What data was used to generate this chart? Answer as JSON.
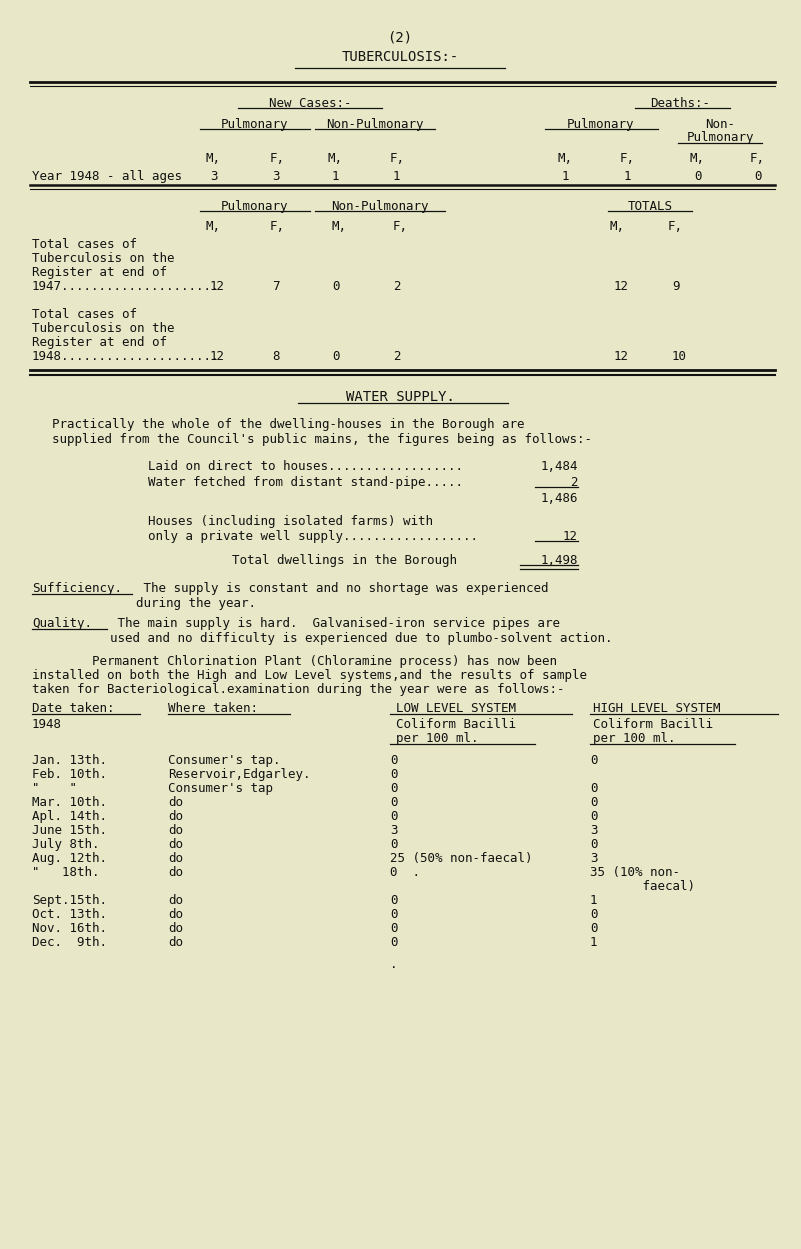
{
  "bg_color": "#e8e8c8",
  "text_color": "#111111",
  "page_title1": "(2)",
  "page_title2": "TUBERCULOSIS:-",
  "water_title": "WATER SUPPLY.",
  "water_para1": "Practically the whole of the dwelling-houses in the Borough are",
  "water_para2": "supplied from the Council's public mains, the figures being as follows:-",
  "water_item1_label": "Laid on direct to houses..................",
  "water_item1_val": "1,484",
  "water_item2_label": "Water fetched from distant stand-pipe.....",
  "water_item2_val": "2",
  "water_subtotal": "1,486",
  "water_item3_label1": "Houses (including isolated farms) with",
  "water_item3_label2": "only a private well supply..................",
  "water_item3_val": "12",
  "water_total_label": "Total dwellings in the Borough",
  "water_total_val": "1,498",
  "sufficiency_title": "Sufficiency.",
  "sufficiency_body": " The supply is constant and no shortage was experienced",
  "sufficiency_body2": "during the year.",
  "quality_title": "Quality.",
  "quality_body": " The main supply is hard.  Galvanised-iron service pipes are",
  "quality_body2": "used and no difficulty is experienced due to plumbo-solvent action.",
  "chlor_line1": "        Permanent Chlorination Plant (Chloramine process) has now been",
  "chlor_line2": "installed on both the High and Low Level systems,and the results of sample",
  "chlor_line3": "taken for Bacteriological.examination during the year were as follows:-",
  "new_cases_hdr": "New Cases:-",
  "deaths_hdr": "Deaths:-",
  "pulmonary": "Pulmonary",
  "non_pulmonary": "Non-Pulmonary",
  "non_pulm_2line_1": "Non-",
  "non_pulm_2line_2": "Pulmonary",
  "totals": "TOTALS",
  "mf_labels": [
    "M,",
    "F,",
    "M,",
    "F,",
    "M,",
    "F,",
    "M,",
    "F,"
  ],
  "year_row_label": "Year 1948 - all ages",
  "year_row_vals": [
    "3",
    "3",
    "1",
    "1",
    "1",
    "1",
    "0",
    "0"
  ],
  "mf2_labels": [
    "M,",
    "F,",
    "M,",
    "F,",
    "M,",
    "F,"
  ],
  "tb47_lines": [
    "Total cases of",
    "Tuberculosis on the",
    "Register at end of",
    "1947....................."
  ],
  "tb47_vals": [
    "12",
    "7",
    "0",
    "2",
    "12",
    "9"
  ],
  "tb48_lines": [
    "Total cases of",
    "Tuberculosis on the",
    "Register at end of",
    "1948....................."
  ],
  "tb48_vals": [
    "12",
    "8",
    "0",
    "2",
    "12",
    "10"
  ],
  "table2_date_hdr": "Date taken:",
  "table2_year": "1948",
  "table2_where_hdr": "Where taken:",
  "table2_low_sys": "LOW LEVEL SYSTEM",
  "table2_high_sys": "HIGH LEVEL SYSTEM",
  "table2_coliform": "Coliform Bacilli",
  "table2_per100": "per 100 ml.",
  "table2_rows": [
    [
      "Jan. 13th.",
      "Consumer's tap.",
      "0",
      "0"
    ],
    [
      "Feb. 10th.",
      "Reservoir,Edgarley.",
      "0",
      ""
    ],
    [
      "\"    \"",
      "Consumer's tap",
      "0",
      "0"
    ],
    [
      "Mar. 10th.",
      "do",
      "0",
      "0"
    ],
    [
      "Apl. 14th.",
      "do",
      "0",
      "0"
    ],
    [
      "June 15th.",
      "do",
      "3",
      "3"
    ],
    [
      "July 8th.",
      "do",
      "0",
      "0"
    ],
    [
      "Aug. 12th.",
      "do",
      "25 (50% non-faecal)",
      "3"
    ],
    [
      "\"   18th.",
      "do",
      "0  .",
      "35 (10% non-"
    ],
    [
      "",
      "",
      "",
      "       faecal)"
    ],
    [
      "Sept.15th.",
      "do",
      "0",
      "1"
    ],
    [
      "Oct. 13th.",
      "do",
      "0",
      "0"
    ],
    [
      "Nov. 16th.",
      "do",
      "0",
      "0"
    ],
    [
      "Dec.  9th.",
      "do",
      "0",
      "1"
    ]
  ],
  "footnote": "."
}
